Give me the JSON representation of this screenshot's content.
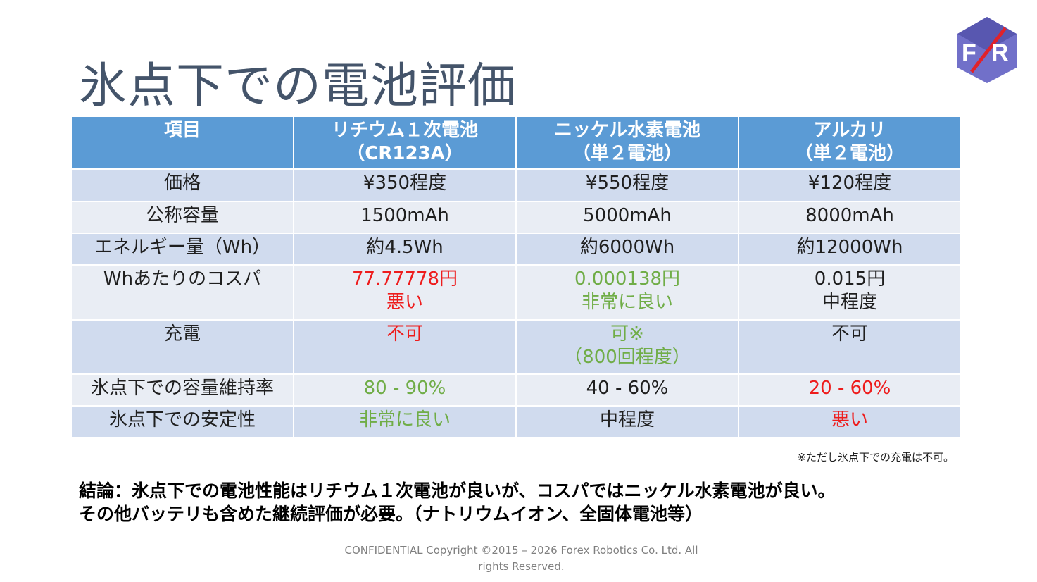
{
  "slide": {
    "title": "氷点下での電池評価",
    "logo_letters": [
      "F",
      "R"
    ]
  },
  "colors": {
    "header": "#5b9bd5",
    "row_light": "#e9edf4",
    "row_dark": "#d0dbee",
    "bad": "#ee1c1c",
    "good": "#70ad47",
    "title": "#44546a"
  },
  "table": {
    "headers": [
      [
        "項目"
      ],
      [
        "リチウム１次電池",
        "（CR123A）"
      ],
      [
        "ニッケル水素電池",
        "（単２電池）"
      ],
      [
        "アルカリ",
        "（単２電池）"
      ]
    ],
    "rows": [
      {
        "label": "価格",
        "cells": [
          [
            "¥350程度"
          ],
          [
            "¥550程度"
          ],
          [
            "¥120程度"
          ]
        ],
        "tone": [
          "",
          "",
          ""
        ]
      },
      {
        "label": "公称容量",
        "cells": [
          [
            "1500mAh"
          ],
          [
            "5000mAh"
          ],
          [
            "8000mAh"
          ]
        ],
        "tone": [
          "",
          "",
          ""
        ]
      },
      {
        "label": "エネルギー量（Wh）",
        "cells": [
          [
            "約4.5Wh"
          ],
          [
            "約6000Wh"
          ],
          [
            "約12000Wh"
          ]
        ],
        "tone": [
          "",
          "",
          ""
        ]
      },
      {
        "label": "Whあたりのコスパ",
        "cells": [
          [
            "77.77778円",
            "悪い"
          ],
          [
            "0.000138円",
            "非常に良い"
          ],
          [
            "0.015円",
            "中程度"
          ]
        ],
        "tone": [
          "red",
          "green",
          ""
        ]
      },
      {
        "label": "充電",
        "cells": [
          [
            "不可"
          ],
          [
            "可※",
            "（800回程度）"
          ],
          [
            "不可"
          ]
        ],
        "tone": [
          "red",
          "green",
          ""
        ]
      },
      {
        "label": "氷点下での容量維持率",
        "cells": [
          [
            "80 - 90%"
          ],
          [
            "40 - 60%"
          ],
          [
            "20 - 60%"
          ]
        ],
        "tone": [
          "green",
          "",
          "red"
        ]
      },
      {
        "label": "氷点下での安定性",
        "cells": [
          [
            "非常に良い"
          ],
          [
            "中程度"
          ],
          [
            "悪い"
          ]
        ],
        "tone": [
          "green",
          "",
          "red"
        ]
      }
    ]
  },
  "note": "※ただし氷点下での充電は不可。",
  "conclusion": [
    "結論：氷点下での電池性能はリチウム１次電池が良いが、コスパではニッケル水素電池が良い。",
    "その他バッテリも含めた継続評価が必要。（ナトリウムイオン、全固体電池等）"
  ],
  "footer": "CONFIDENTIAL Copyright ©2015 – 2026 Forex Robotics Co. Ltd. All rights Reserved."
}
